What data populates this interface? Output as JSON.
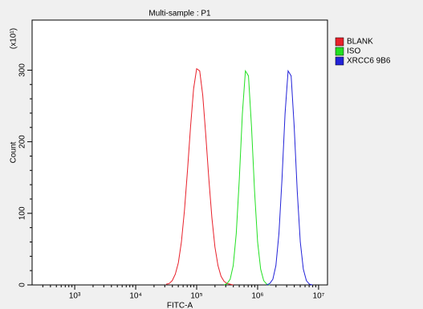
{
  "chart_data": {
    "type": "line",
    "title": "Multi-sample : P1",
    "xlabel": "FITC-A",
    "ylabel": "Count",
    "y_multiplier": "(x10¹)",
    "xscale": "log",
    "xlim": [
      200,
      14000000
    ],
    "xticks": [
      {
        "value": 1000,
        "label": "10³"
      },
      {
        "value": 10000,
        "label": "10⁴"
      },
      {
        "value": 100000,
        "label": "10⁵"
      },
      {
        "value": 1000000,
        "label": "10⁶"
      },
      {
        "value": 10000000,
        "label": "10⁷"
      }
    ],
    "ylim": [
      0,
      370
    ],
    "yticks": [
      0,
      100,
      200,
      300
    ],
    "legend": "right",
    "x": [
      31623,
      35481,
      39811,
      44668,
      50119,
      56234,
      63096,
      70795,
      79433,
      89125,
      100000,
      112202,
      125893,
      141254,
      158489,
      177828,
      199526,
      223872,
      251189,
      281838,
      316228,
      354813,
      398107,
      446684,
      501187,
      562341,
      630957,
      707946,
      794328,
      891251,
      1000000,
      1122018,
      1258925,
      1412538,
      1584893,
      1778279,
      1995262,
      2238721,
      2511886,
      2818383,
      3162278,
      3548134,
      3981072,
      4466836,
      5011872,
      5623413,
      6309573,
      7079458,
      7943282,
      8912509,
      10000000
    ],
    "series": [
      {
        "name": "BLANK",
        "color": "#e8202a",
        "values": [
          1,
          2,
          6,
          15,
          31,
          60,
          104,
          160,
          221,
          274,
          302,
          299,
          265,
          209,
          148,
          94,
          53,
          27,
          12,
          5,
          2,
          1,
          0,
          null,
          null,
          null,
          null,
          null,
          null,
          null,
          null,
          null,
          null,
          null,
          null,
          null,
          null,
          null,
          null,
          null,
          null,
          null,
          null,
          null,
          null,
          null,
          null,
          null,
          null,
          null,
          null
        ]
      },
      {
        "name": "ISO",
        "color": "#22e022",
        "values": [
          null,
          null,
          null,
          null,
          null,
          null,
          null,
          null,
          null,
          null,
          null,
          null,
          null,
          null,
          null,
          null,
          null,
          null,
          null,
          0,
          2,
          8,
          27,
          72,
          148,
          239,
          299,
          292,
          221,
          131,
          60,
          22,
          6,
          1,
          0,
          null,
          null,
          null,
          null,
          null,
          null,
          null,
          null,
          null,
          null,
          null,
          null,
          null,
          null,
          null,
          null
        ]
      },
      {
        "name": "XRCC6 9B6",
        "color": "#2222d8",
        "values": [
          null,
          null,
          null,
          null,
          null,
          null,
          null,
          null,
          null,
          null,
          null,
          null,
          null,
          null,
          null,
          null,
          null,
          null,
          null,
          null,
          null,
          null,
          null,
          null,
          null,
          null,
          null,
          null,
          null,
          null,
          null,
          null,
          null,
          0,
          2,
          8,
          27,
          72,
          148,
          239,
          299,
          292,
          221,
          131,
          60,
          22,
          6,
          1,
          0,
          null,
          null
        ]
      }
    ]
  }
}
